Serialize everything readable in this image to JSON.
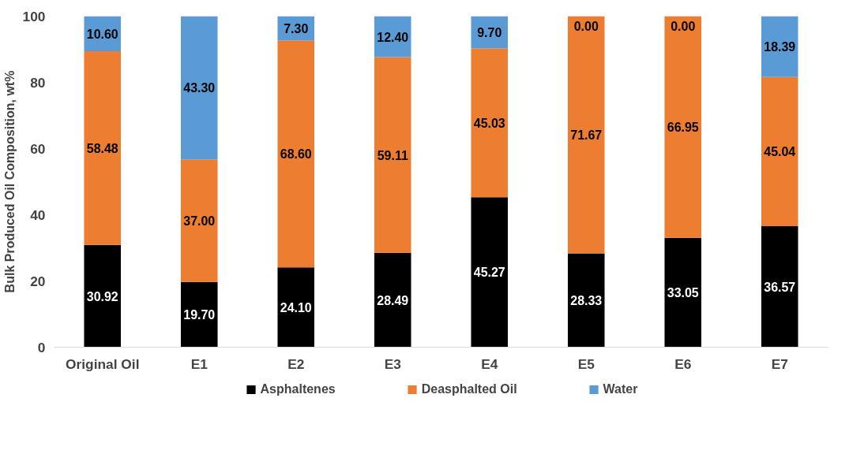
{
  "chart_data": {
    "type": "bar",
    "stacked": true,
    "ylabel": "Bulk Produced Oil Composition, wt%",
    "categories": [
      "Original Oil",
      "E1",
      "E2",
      "E3",
      "E4",
      "E5",
      "E6",
      "E7"
    ],
    "ylim": [
      0,
      100
    ],
    "yticks": [
      0,
      20,
      40,
      60,
      80,
      100
    ],
    "grid": false,
    "legend": "bottom",
    "series": [
      {
        "name": "Asphaltenes",
        "color": "#000000",
        "values": [
          30.92,
          19.7,
          24.1,
          28.49,
          45.27,
          28.33,
          33.05,
          36.57
        ],
        "value_labels": [
          "30.92",
          "19.70",
          "24.10",
          "28.49",
          "45.27",
          "28.33",
          "33.05",
          "36.57"
        ]
      },
      {
        "name": "Deasphalted Oil",
        "color": "#ed7d31",
        "values": [
          58.48,
          37.0,
          68.6,
          59.11,
          45.03,
          71.67,
          66.95,
          45.04
        ],
        "value_labels": [
          "58.48",
          "37.00",
          "68.60",
          "59.11",
          "45.03",
          "71.67",
          "66.95",
          "45.04"
        ]
      },
      {
        "name": "Water",
        "color": "#5b9bd5",
        "values": [
          10.6,
          43.3,
          7.3,
          12.4,
          9.7,
          0.0,
          0.0,
          18.39
        ],
        "value_labels": [
          "10.60",
          "43.30",
          "7.30",
          "12.40",
          "9.70",
          "0.00",
          "0.00",
          "18.39"
        ]
      }
    ]
  }
}
